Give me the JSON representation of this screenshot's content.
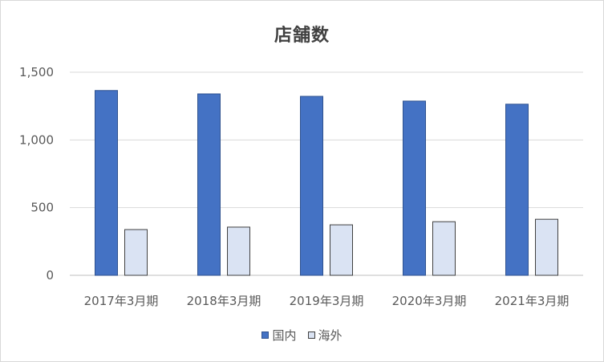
{
  "chart_data": {
    "type": "bar",
    "title": "店舗数",
    "categories": [
      "2017年3月期",
      "2018年3月期",
      "2019年3月期",
      "2020年3月期",
      "2021年3月期"
    ],
    "series": [
      {
        "name": "国内",
        "values": [
          1365,
          1340,
          1322,
          1287,
          1264
        ],
        "color": "#4472c4",
        "stroke": "#2f528f"
      },
      {
        "name": "海外",
        "values": [
          338,
          356,
          373,
          396,
          414
        ],
        "color": "#dae3f3",
        "stroke": "#404040"
      }
    ],
    "ylim": [
      0,
      1500
    ],
    "yticks": [
      0,
      500,
      1000,
      1500
    ],
    "ytick_labels": [
      "0",
      "500",
      "1,000",
      "1,500"
    ],
    "grid": true,
    "legend": "bottom",
    "xlabel": "",
    "ylabel": ""
  }
}
